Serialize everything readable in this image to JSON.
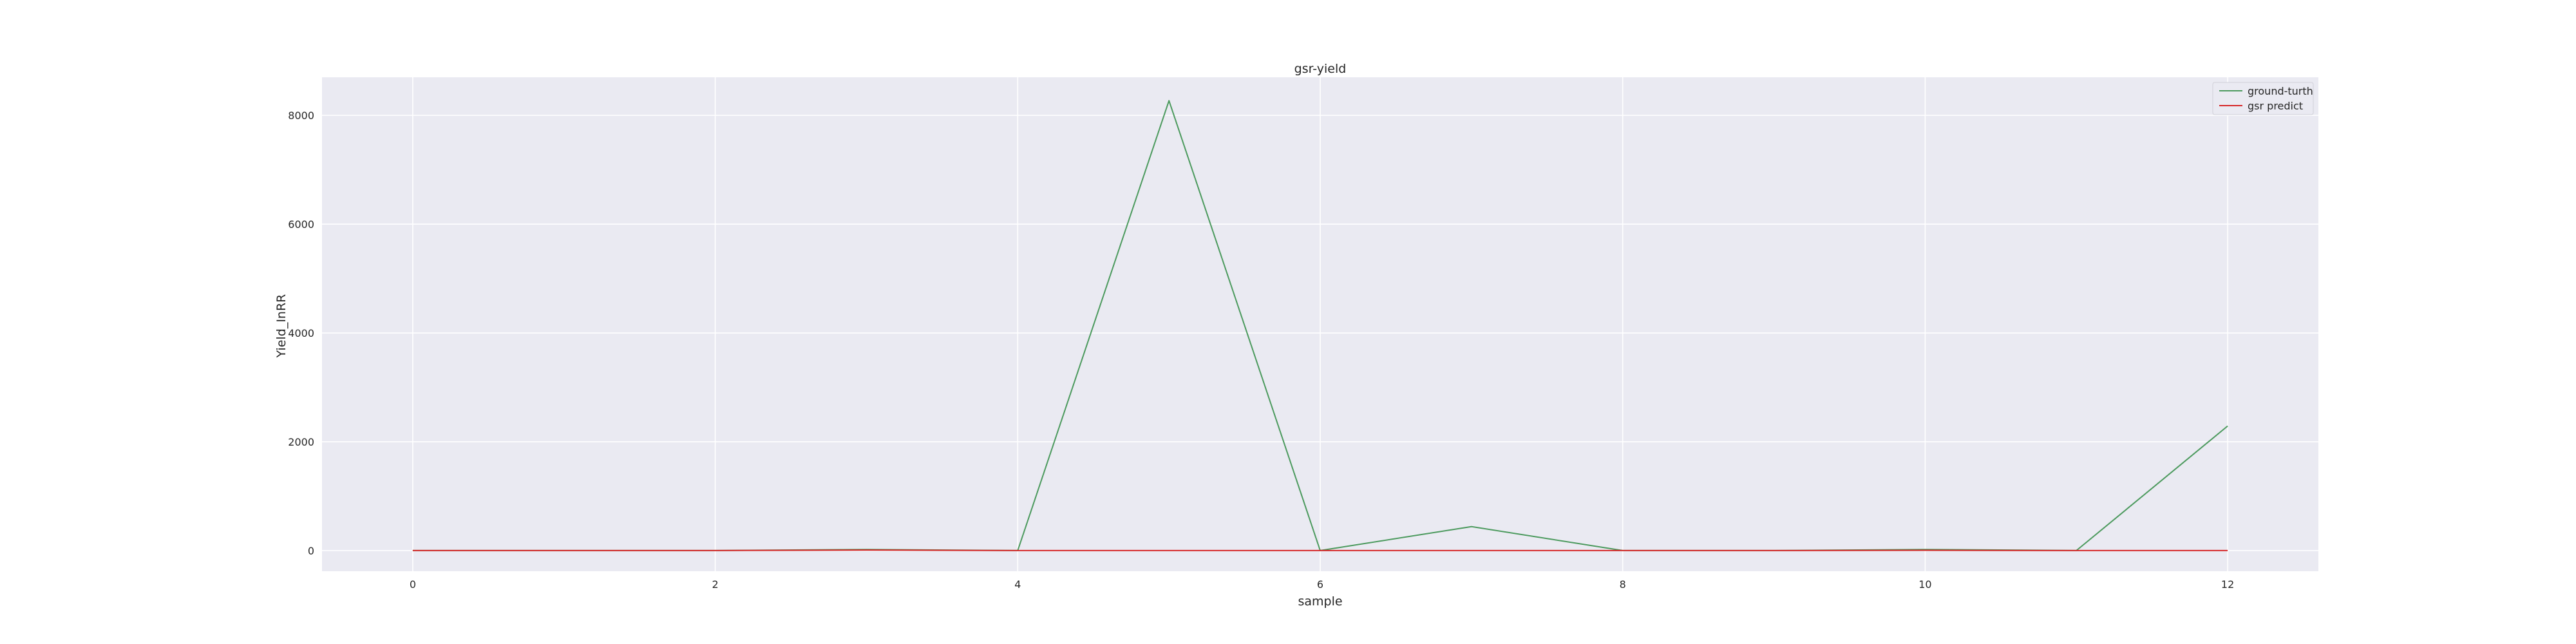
{
  "chart_data": {
    "type": "line",
    "title": "gsr-yield",
    "xlabel": "sample",
    "ylabel": "Yield_InRR",
    "x": [
      0,
      1,
      2,
      3,
      4,
      5,
      6,
      7,
      8,
      9,
      10,
      11,
      12
    ],
    "xticks": [
      "0",
      "2",
      "4",
      "6",
      "8",
      "10",
      "12"
    ],
    "yticks": [
      "0",
      "2000",
      "4000",
      "6000",
      "8000"
    ],
    "xlim": [
      -0.6,
      12.6
    ],
    "ylim": [
      -380,
      8700
    ],
    "grid": true,
    "legend_position": "upper-right",
    "series": [
      {
        "name": "ground-turth",
        "color": "#4c9a5e",
        "values": [
          0,
          0,
          0,
          20,
          0,
          8270,
          0,
          440,
          0,
          0,
          20,
          0,
          2290
        ]
      },
      {
        "name": "gsr predict",
        "color": "#d62728",
        "values": [
          0,
          0,
          0,
          10,
          0,
          0,
          0,
          0,
          0,
          0,
          5,
          0,
          0
        ]
      }
    ]
  }
}
